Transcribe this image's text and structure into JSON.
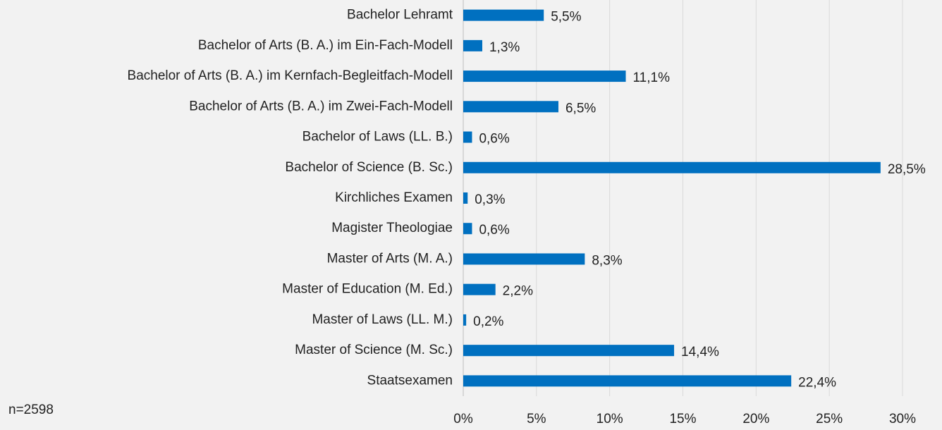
{
  "chart_data": {
    "type": "bar",
    "orientation": "horizontal",
    "categories": [
      "Bachelor Lehramt",
      "Bachelor of Arts (B. A.) im Ein-Fach-Modell",
      "Bachelor of Arts (B. A.) im Kernfach-Begleitfach-Modell",
      "Bachelor of Arts (B. A.) im Zwei-Fach-Modell",
      "Bachelor of Laws (LL. B.)",
      "Bachelor of Science (B. Sc.)",
      "Kirchliches Examen",
      "Magister Theologiae",
      "Master of Arts (M. A.)",
      "Master of Education (M. Ed.)",
      "Master of Laws (LL. M.)",
      "Master of Science (M. Sc.)",
      "Staatsexamen"
    ],
    "values": [
      5.5,
      1.3,
      11.1,
      6.5,
      0.6,
      28.5,
      0.3,
      0.6,
      8.3,
      2.2,
      0.2,
      14.4,
      22.4
    ],
    "value_labels": [
      "5,5%",
      "1,3%",
      "11,1%",
      "6,5%",
      "0,6%",
      "28,5%",
      "0,3%",
      "0,6%",
      "8,3%",
      "2,2%",
      "0,2%",
      "14,4%",
      "22,4%"
    ],
    "color": "#0070c0",
    "xlim": [
      0,
      30
    ],
    "xticks": [
      {
        "value": 0,
        "label": "0%"
      },
      {
        "value": 5,
        "label": "5%"
      },
      {
        "value": 10,
        "label": "10%"
      },
      {
        "value": 15,
        "label": "15%"
      },
      {
        "value": 20,
        "label": "20%"
      },
      {
        "value": 25,
        "label": "25%"
      },
      {
        "value": 30,
        "label": "30%"
      }
    ],
    "grid": true,
    "annotation": "n=2598"
  }
}
